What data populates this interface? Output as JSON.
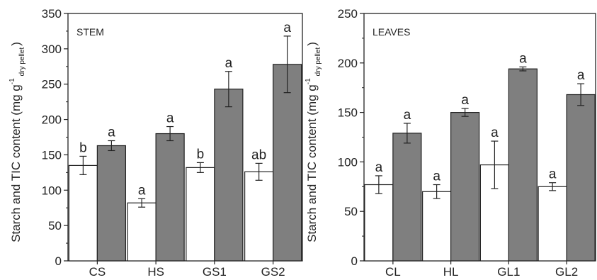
{
  "colors": {
    "white_bar": "#ffffff",
    "grey_bar": "#7f7f7f",
    "axis": "#222222"
  },
  "chart_data": [
    {
      "type": "bar",
      "panel_label": "STEM",
      "categories": [
        "CS",
        "HS",
        "GS1",
        "GS2"
      ],
      "ylim": [
        0,
        350
      ],
      "yticks": [
        0,
        50,
        100,
        150,
        200,
        250,
        300,
        350
      ],
      "ylabel": {
        "main": "Starch and TIC content (mg g",
        "sup": "-1",
        "sub": "dry pellet",
        "close": ")"
      },
      "series": [
        {
          "color": "#ffffff",
          "values": [
            135,
            82,
            132,
            126
          ],
          "errors": [
            13,
            6,
            7,
            12
          ],
          "labels": [
            "b",
            "a",
            "b",
            "ab"
          ]
        },
        {
          "color": "#7f7f7f",
          "values": [
            163,
            180,
            243,
            278
          ],
          "errors": [
            7,
            10,
            25,
            40
          ],
          "labels": [
            "a",
            "a",
            "a",
            "a"
          ]
        }
      ]
    },
    {
      "type": "bar",
      "panel_label": "LEAVES",
      "categories": [
        "CL",
        "HL",
        "GL1",
        "GL2"
      ],
      "ylim": [
        0,
        250
      ],
      "yticks": [
        0,
        50,
        100,
        150,
        200,
        250
      ],
      "ylabel": {
        "main": "Starch and TIC content (mg g",
        "sup": "-1",
        "sub": "dry pellet",
        "close": ")"
      },
      "series": [
        {
          "color": "#ffffff",
          "values": [
            77,
            70,
            97,
            75
          ],
          "errors": [
            9,
            7,
            24,
            4
          ],
          "labels": [
            "a",
            "a",
            "a",
            "a"
          ]
        },
        {
          "color": "#7f7f7f",
          "values": [
            129,
            150,
            194,
            168
          ],
          "errors": [
            10,
            4,
            2,
            11
          ],
          "labels": [
            "a",
            "a",
            "a",
            "a"
          ]
        }
      ]
    }
  ]
}
